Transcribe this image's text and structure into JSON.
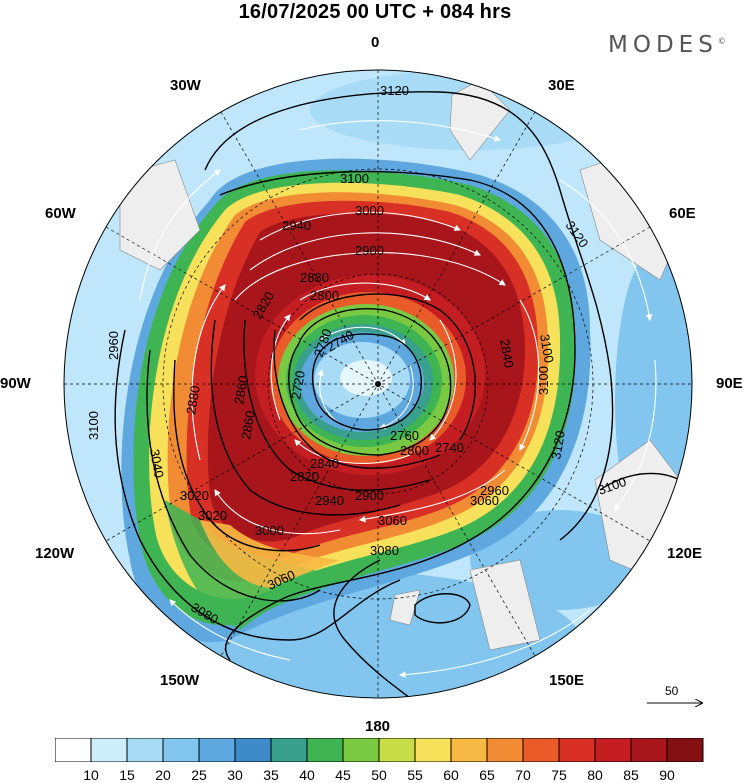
{
  "header": {
    "title": "16/07/2025  00 UTC  + 084 hrs",
    "brand": "MODES",
    "brand_mark": "©"
  },
  "map": {
    "projection": "polar-stereographic-south",
    "longitude_labels": [
      "0",
      "30E",
      "60E",
      "90E",
      "120E",
      "150E",
      "180",
      "150W",
      "120W",
      "90W",
      "60W",
      "30W"
    ],
    "contour_labels": [
      "3120",
      "3100",
      "3120",
      "3100",
      "3120",
      "3100",
      "3100",
      "3060",
      "3080",
      "3100",
      "3020",
      "3040",
      "3000",
      "3020",
      "3060",
      "3080",
      "2960",
      "2940",
      "2900",
      "2880",
      "2860",
      "2840",
      "2820",
      "2800",
      "2800",
      "2780",
      "2760",
      "2740",
      "2720",
      "2740",
      "2820",
      "2840",
      "2860",
      "2880",
      "2900",
      "2940",
      "2960",
      "3000",
      "3060"
    ],
    "field": "wind speed (shaded) with geopotential height contours and wind vectors",
    "reference_vector_label": "50"
  },
  "colorbar": {
    "labels": [
      "10",
      "15",
      "20",
      "25",
      "30",
      "35",
      "40",
      "45",
      "50",
      "55",
      "60",
      "65",
      "70",
      "75",
      "80",
      "85",
      "90"
    ],
    "colors": [
      "#ffffff",
      "#cfeefc",
      "#a8dcf6",
      "#82c6ef",
      "#5ea8df",
      "#3f8ac8",
      "#3aa08e",
      "#3eb552",
      "#7ac943",
      "#c8de49",
      "#f7e15a",
      "#f6b944",
      "#f18c34",
      "#ea5b2a",
      "#d93026",
      "#c41d22",
      "#a8161b",
      "#851014"
    ]
  }
}
